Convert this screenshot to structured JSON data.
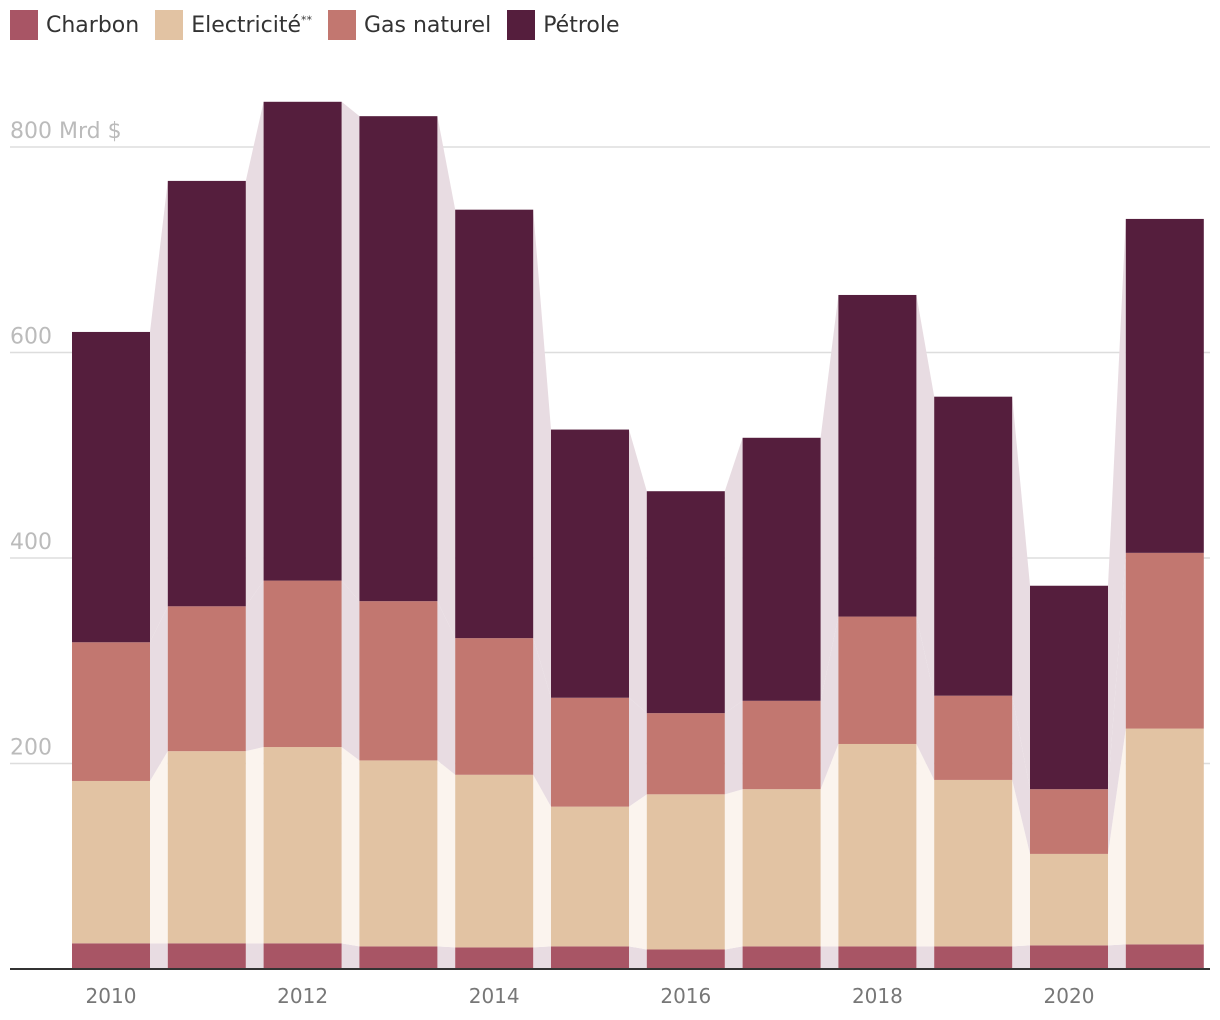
{
  "legend": {
    "items": [
      {
        "label": "Charbon",
        "color": "#a85565"
      },
      {
        "label": "Electricité**",
        "color": "#e2c3a3"
      },
      {
        "label": "Gas naturel",
        "color": "#c27770"
      },
      {
        "label": "Pétrole",
        "color": "#551e3d"
      }
    ]
  },
  "colors": {
    "grid": "#dddddd",
    "axis": "#333333",
    "connector": "#e8dce2",
    "connector_light": "#fbf4ee"
  },
  "chart_data": {
    "type": "bar",
    "stacked": true,
    "x": [
      2010,
      2011,
      2012,
      2013,
      2014,
      2015,
      2016,
      2017,
      2018,
      2019,
      2020,
      2021
    ],
    "x_tick_labels": [
      "2010",
      "2012",
      "2014",
      "2016",
      "2018",
      "2020"
    ],
    "x_tick_values": [
      2010,
      2012,
      2014,
      2016,
      2018,
      2020
    ],
    "y_tick_labels": [
      "200",
      "400",
      "600",
      "800 Mrd $"
    ],
    "y_tick_values": [
      200,
      400,
      600,
      800
    ],
    "ylim": [
      0,
      850
    ],
    "grid": true,
    "legend_position": "top-left",
    "series": [
      {
        "name": "Charbon",
        "values": [
          25,
          25,
          25,
          22,
          21,
          22,
          19,
          22,
          22,
          22,
          23,
          24
        ]
      },
      {
        "name": "Electricité**",
        "values": [
          158,
          187,
          191,
          181,
          168,
          136,
          151,
          153,
          197,
          162,
          89,
          210
        ]
      },
      {
        "name": "Gas naturel",
        "values": [
          135,
          141,
          162,
          155,
          133,
          106,
          79,
          86,
          124,
          82,
          63,
          171
        ]
      },
      {
        "name": "Pétrole",
        "values": [
          302,
          414,
          466,
          472,
          417,
          261,
          216,
          256,
          313,
          291,
          198,
          325
        ]
      }
    ]
  }
}
